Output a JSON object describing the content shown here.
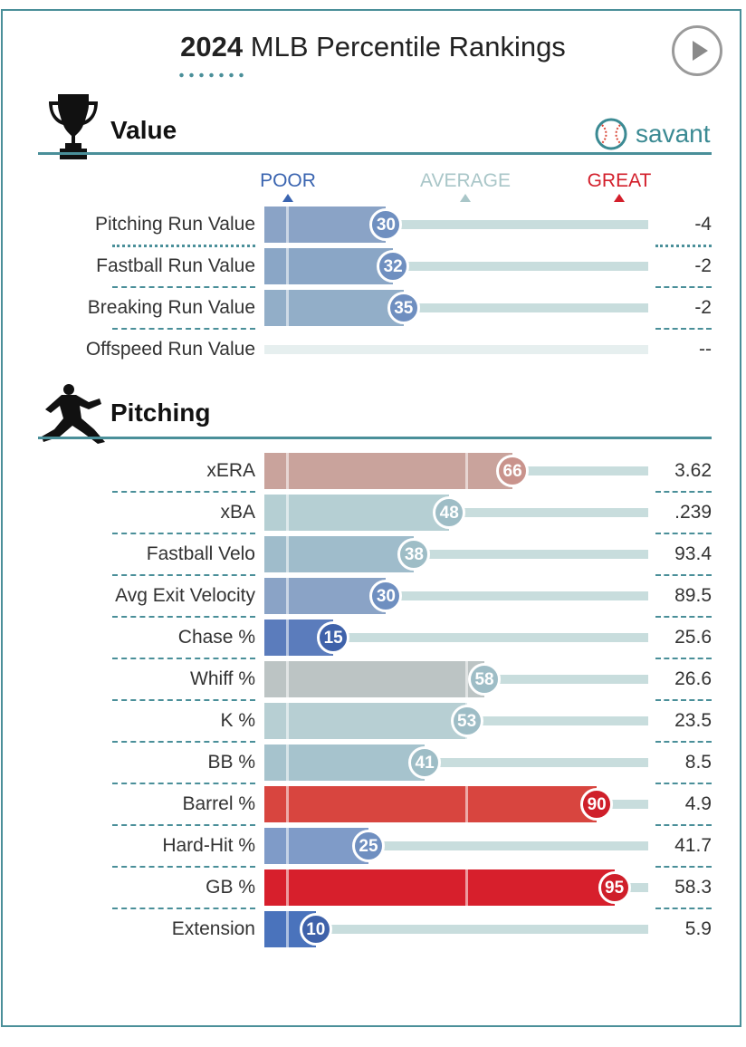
{
  "header": {
    "title_year": "2024",
    "title_rest": " MLB Percentile Rankings"
  },
  "brand": {
    "label": "savant",
    "icon": "baseball-icon"
  },
  "scale": {
    "poor": "POOR",
    "average": "AVERAGE",
    "great": "GREAT"
  },
  "colors": {
    "poor": "#3a64b0",
    "average": "#a9c6c8",
    "great": "#d31f2b",
    "accent": "#4a8f99"
  },
  "sections": [
    {
      "title": "Value",
      "icon": "trophy-icon",
      "metrics": [
        {
          "label": "Pitching Run Value",
          "percentile": 30,
          "value": "-4",
          "color": "#8aa3c6"
        },
        {
          "label": "Fastball Run Value",
          "percentile": 32,
          "value": "-2",
          "color": "#8aa6c6"
        },
        {
          "label": "Breaking Run Value",
          "percentile": 35,
          "value": "-2",
          "color": "#92aec8"
        },
        {
          "label": "Offspeed Run Value",
          "percentile": null,
          "value": "--",
          "color": "#e6efef"
        }
      ]
    },
    {
      "title": "Pitching",
      "icon": "pitcher-icon",
      "metrics": [
        {
          "label": "xERA",
          "percentile": 66,
          "value": "3.62",
          "color": "#c9a39c"
        },
        {
          "label": "xBA",
          "percentile": 48,
          "value": ".239",
          "color": "#b5cfd3"
        },
        {
          "label": "Fastball Velo",
          "percentile": 38,
          "value": "93.4",
          "color": "#9fbccb"
        },
        {
          "label": "Avg Exit Velocity",
          "percentile": 30,
          "value": "89.5",
          "color": "#8aa3c6"
        },
        {
          "label": "Chase %",
          "percentile": 15,
          "value": "25.6",
          "color": "#5b7cbc"
        },
        {
          "label": "Whiff %",
          "percentile": 58,
          "value": "26.6",
          "color": "#bcc4c4"
        },
        {
          "label": "K %",
          "percentile": 53,
          "value": "23.5",
          "color": "#b7cfd3"
        },
        {
          "label": "BB %",
          "percentile": 41,
          "value": "8.5",
          "color": "#a6c3cd"
        },
        {
          "label": "Barrel %",
          "percentile": 90,
          "value": "4.9",
          "color": "#d8453f"
        },
        {
          "label": "Hard-Hit %",
          "percentile": 25,
          "value": "41.7",
          "color": "#7f9bc8"
        },
        {
          "label": "GB %",
          "percentile": 95,
          "value": "58.3",
          "color": "#d71f2c"
        },
        {
          "label": "Extension",
          "percentile": 10,
          "value": "5.9",
          "color": "#4a73bc"
        }
      ]
    }
  ]
}
